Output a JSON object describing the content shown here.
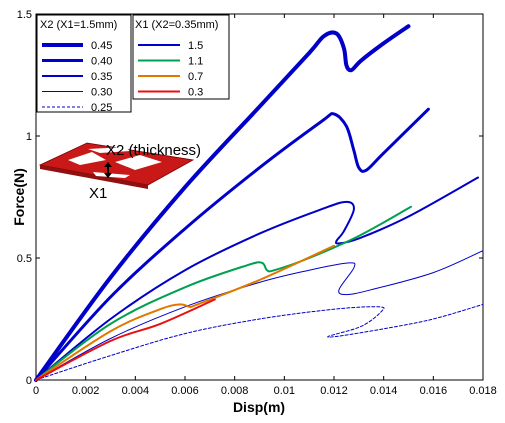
{
  "chart_data": {
    "type": "line",
    "xlabel": "Disp(m)",
    "ylabel": "Force(N)",
    "xlim": [
      0,
      0.018
    ],
    "ylim": [
      0,
      1.5
    ],
    "xticks": [
      "0",
      "0.002",
      "0.004",
      "0.006",
      "0.008",
      "0.01",
      "0.012",
      "0.014",
      "0.016",
      "0.018"
    ],
    "yticks": [
      "0",
      "0.5",
      "1",
      "1.5"
    ],
    "inset_labels": {
      "x2": "X2 (thickness)",
      "x1": "X1"
    },
    "legends": [
      {
        "title": "X2 (X1=1.5mm)",
        "entries": [
          "0.45",
          "0.40",
          "0.35",
          "0.30",
          "0.25"
        ]
      },
      {
        "title": "X1 (X2=0.35mm)",
        "entries": [
          "1.5",
          "1.1",
          "0.7",
          "0.3"
        ]
      }
    ],
    "series": [
      {
        "name": "0.45",
        "color": "#0000c8",
        "width": 4,
        "dash": "",
        "points": [
          [
            0,
            0
          ],
          [
            0.003,
            0.42
          ],
          [
            0.006,
            0.79
          ],
          [
            0.009,
            1.12
          ],
          [
            0.011,
            1.34
          ],
          [
            0.0116,
            1.41
          ],
          [
            0.0121,
            1.42
          ],
          [
            0.0124,
            1.36
          ],
          [
            0.0125,
            1.29
          ],
          [
            0.0127,
            1.27
          ],
          [
            0.0131,
            1.31
          ],
          [
            0.014,
            1.38
          ],
          [
            0.015,
            1.45
          ]
        ]
      },
      {
        "name": "0.40",
        "color": "#0000c8",
        "width": 3,
        "dash": "",
        "points": [
          [
            0,
            0
          ],
          [
            0.003,
            0.34
          ],
          [
            0.006,
            0.62
          ],
          [
            0.009,
            0.87
          ],
          [
            0.0115,
            1.06
          ],
          [
            0.012,
            1.09
          ],
          [
            0.0125,
            1.04
          ],
          [
            0.0128,
            0.94
          ],
          [
            0.013,
            0.87
          ],
          [
            0.0133,
            0.86
          ],
          [
            0.014,
            0.93
          ],
          [
            0.0158,
            1.11
          ]
        ]
      },
      {
        "name": "0.35",
        "color": "#0000c8",
        "width": 2,
        "dash": "",
        "points": [
          [
            0,
            0
          ],
          [
            0.003,
            0.25
          ],
          [
            0.006,
            0.45
          ],
          [
            0.009,
            0.6
          ],
          [
            0.0115,
            0.7
          ],
          [
            0.0125,
            0.73
          ],
          [
            0.0128,
            0.7
          ],
          [
            0.0124,
            0.61
          ],
          [
            0.0121,
            0.57
          ],
          [
            0.0122,
            0.56
          ],
          [
            0.013,
            0.58
          ],
          [
            0.015,
            0.67
          ],
          [
            0.0178,
            0.83
          ]
        ]
      },
      {
        "name": "0.30",
        "color": "#0000c8",
        "width": 1,
        "dash": "",
        "points": [
          [
            0,
            0
          ],
          [
            0.003,
            0.17
          ],
          [
            0.006,
            0.3
          ],
          [
            0.009,
            0.4
          ],
          [
            0.011,
            0.45
          ],
          [
            0.0126,
            0.48
          ],
          [
            0.0128,
            0.46
          ],
          [
            0.0122,
            0.37
          ],
          [
            0.0125,
            0.35
          ],
          [
            0.0135,
            0.37
          ],
          [
            0.016,
            0.44
          ],
          [
            0.018,
            0.53
          ]
        ]
      },
      {
        "name": "0.25",
        "color": "#0000c8",
        "width": 1,
        "dash": "3,2",
        "points": [
          [
            0,
            0
          ],
          [
            0.003,
            0.1
          ],
          [
            0.006,
            0.19
          ],
          [
            0.009,
            0.25
          ],
          [
            0.012,
            0.29
          ],
          [
            0.0138,
            0.3
          ],
          [
            0.0139,
            0.28
          ],
          [
            0.0131,
            0.22
          ],
          [
            0.0118,
            0.18
          ],
          [
            0.0122,
            0.18
          ],
          [
            0.014,
            0.21
          ],
          [
            0.016,
            0.25
          ],
          [
            0.018,
            0.31
          ]
        ]
      },
      {
        "name": "1.1",
        "color": "#00a050",
        "width": 2,
        "dash": "",
        "points": [
          [
            0,
            0
          ],
          [
            0.003,
            0.23
          ],
          [
            0.006,
            0.38
          ],
          [
            0.0085,
            0.47
          ],
          [
            0.0091,
            0.48
          ],
          [
            0.0093,
            0.45
          ],
          [
            0.0096,
            0.45
          ],
          [
            0.011,
            0.5
          ],
          [
            0.013,
            0.59
          ],
          [
            0.0151,
            0.71
          ]
        ]
      },
      {
        "name": "0.7",
        "color": "#e07800",
        "width": 2,
        "dash": "",
        "points": [
          [
            0,
            0
          ],
          [
            0.003,
            0.2
          ],
          [
            0.005,
            0.29
          ],
          [
            0.0058,
            0.31
          ],
          [
            0.0062,
            0.3
          ],
          [
            0.0065,
            0.31
          ],
          [
            0.009,
            0.41
          ],
          [
            0.012,
            0.55
          ]
        ]
      },
      {
        "name": "0.3",
        "color": "#e81010",
        "width": 2,
        "dash": "",
        "points": [
          [
            0,
            0
          ],
          [
            0.003,
            0.16
          ],
          [
            0.005,
            0.23
          ],
          [
            0.0072,
            0.33
          ]
        ]
      }
    ]
  }
}
